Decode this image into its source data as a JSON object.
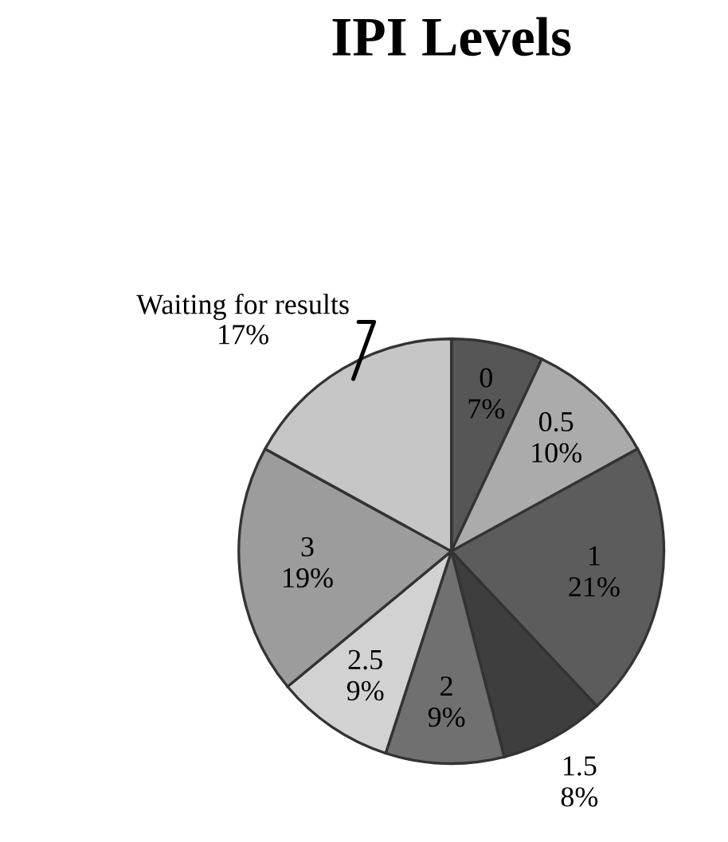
{
  "chart_data": {
    "type": "pie",
    "title": "IPI Levels",
    "categories": [
      "0",
      "0.5",
      "1",
      "1.5",
      "2",
      "2.5",
      "3",
      "Waiting for results"
    ],
    "values": [
      7,
      10,
      21,
      8,
      9,
      9,
      19,
      17
    ],
    "value_labels": [
      "7%",
      "10%",
      "21%",
      "8%",
      "9%",
      "9%",
      "19%",
      "17%"
    ],
    "colors": [
      "#565656",
      "#ababab",
      "#5c5c5c",
      "#3e3e3e",
      "#707070",
      "#d2d2d2",
      "#9c9c9c",
      "#c6c6c6"
    ],
    "legend": false
  }
}
